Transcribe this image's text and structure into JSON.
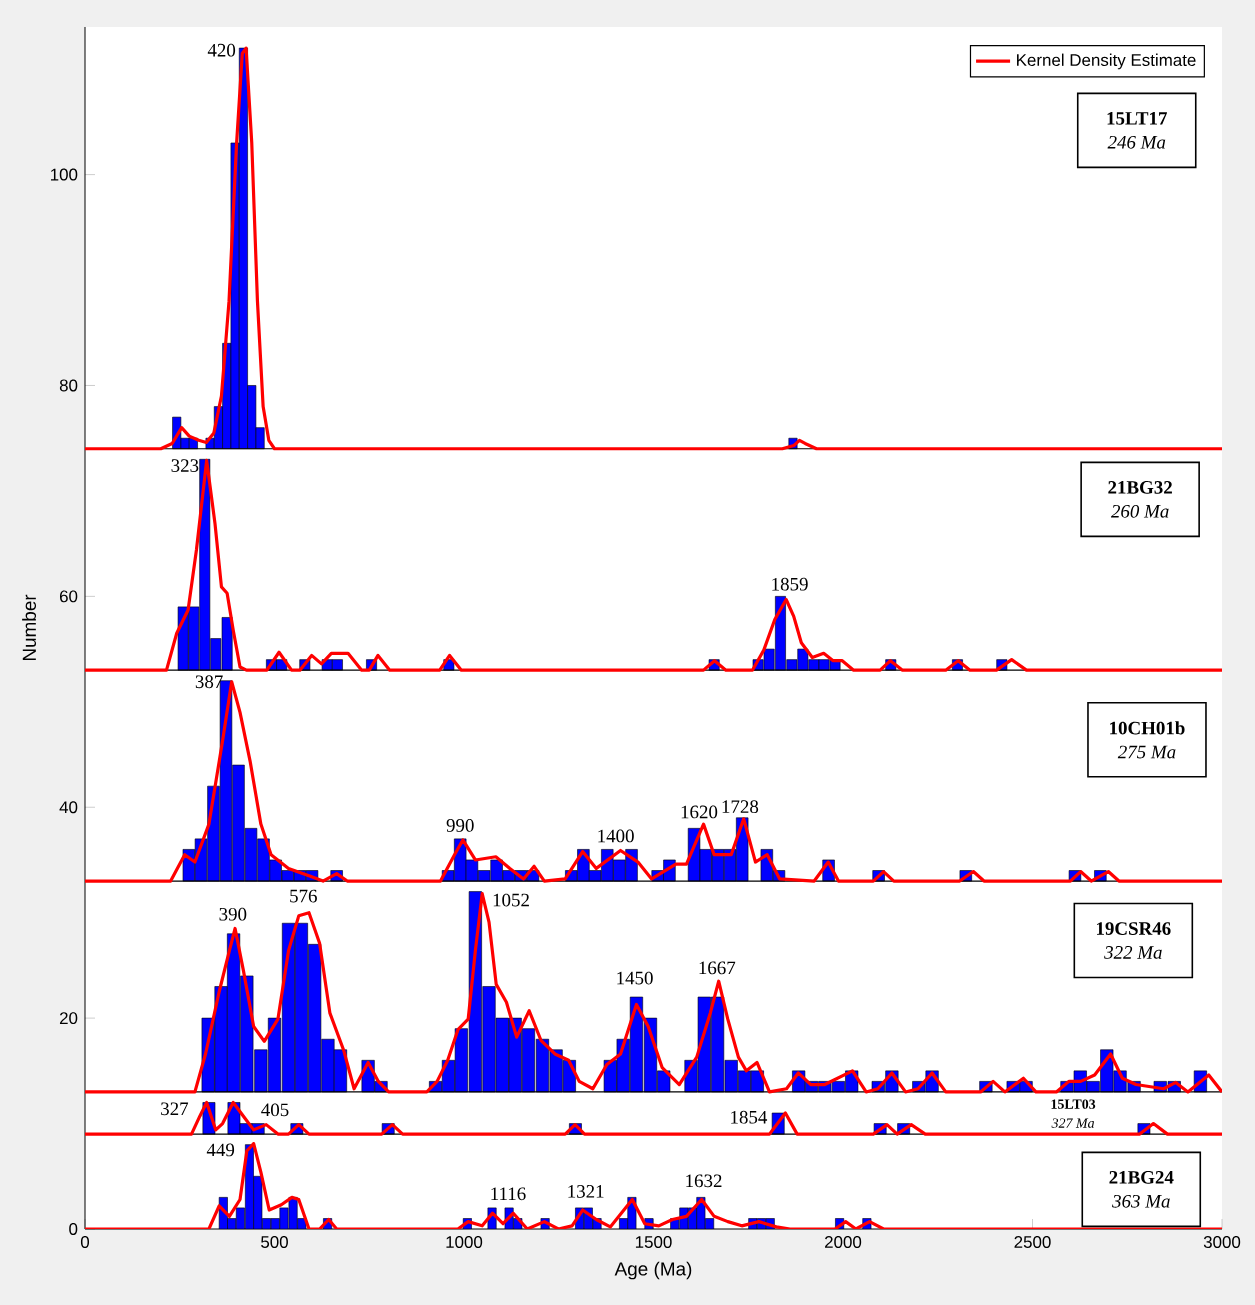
{
  "chart_data": {
    "type": "bar",
    "xlabel": "Age (Ma)",
    "ylabel": "Number",
    "xlim": [
      0,
      3000
    ],
    "ylim": [
      0,
      114
    ],
    "xticks": [
      0,
      500,
      1000,
      1500,
      2000,
      2500,
      3000
    ],
    "yticks": [
      0,
      20,
      40,
      60,
      80,
      100
    ],
    "legend": "top right",
    "series": [
      {
        "color": "#0000ff",
        "x": [
          242,
          259,
          264,
          274,
          286,
          287,
          306,
          316,
          325,
          327,
          330,
          339,
          345,
          352,
          359,
          365,
          372,
          374,
          375,
          387,
          392,
          393,
          396,
          405,
          410,
          418,
          425,
          427,
          434,
          438,
          440,
          456,
          457,
          462,
          464,
          471,
          479,
          492,
          500,
          502,
          503,
          519,
          525,
          535,
          537,
          549,
          559,
          567,
          571,
          572,
          580,
          599,
          606,
          639,
          640,
          641,
          664,
          666,
          674,
          747,
          756,
          781,
          800,
          925,
          958,
          959,
          960,
          990,
          993,
          1009,
          1021,
          1030,
          1053,
          1066,
          1074,
          1086,
          1101,
          1118,
          1119,
          1135,
          1142,
          1150,
          1170,
          1182,
          1207,
          1214,
          1243,
          1278,
          1283,
          1294,
          1305,
          1315,
          1328,
          1346,
          1351,
          1378,
          1386,
          1410,
          1420,
          1421,
          1442,
          1443,
          1455,
          1488,
          1492,
          1511,
          1527,
          1542,
          1556,
          1580,
          1599,
          1603,
          1607,
          1625,
          1634,
          1638,
          1648,
          1660,
          1669,
          1670,
          1702,
          1705,
          1734,
          1740,
          1762,
          1774,
          1776,
          1785,
          1799,
          1805,
          1808,
          1829,
          1831,
          1835,
          1865,
          1868,
          1883,
          1894,
          1917,
          1923,
          1950,
          1952,
          1962,
          1979,
          1988,
          1991,
          2023,
          2063,
          2093,
          2094,
          2098,
          2126,
          2129,
          2160,
          2200,
          2235,
          2302,
          2324,
          2377,
          2419,
          2449,
          2483,
          2591,
          2612,
          2626,
          2660,
          2679,
          2696,
          2731,
          2768,
          2794,
          2837,
          2874,
          2943
        ],
        "values": [
          3,
          6,
          1,
          3,
          1,
          6,
          4,
          20,
          7,
          3,
          1,
          9,
          3,
          4,
          10,
          3,
          19,
          10,
          5,
          1,
          15,
          3,
          29,
          11,
          2,
          38,
          1,
          11,
          8,
          5,
          6,
          5,
          1,
          2,
          4,
          4,
          1,
          1,
          7,
          1,
          2,
          1,
          2,
          1,
          16,
          3,
          1,
          1,
          16,
          1,
          1,
          1,
          14,
          1,
          1,
          5,
          1,
          1,
          4,
          3,
          1,
          1,
          1,
          1,
          1,
          3,
          1,
          4,
          6,
          1,
          2,
          19,
          1,
          10,
          2,
          2,
          7,
          1,
          2,
          7,
          1,
          1,
          6,
          1,
          5,
          1,
          4,
          3,
          1,
          1,
          2,
          3,
          2,
          1,
          1,
          3,
          3,
          2,
          5,
          1,
          3,
          3,
          9,
          1,
          7,
          1,
          2,
          2,
          1,
          2,
          3,
          2,
          5,
          3,
          9,
          3,
          1,
          1,
          9,
          3,
          3,
          3,
          6,
          2,
          1,
          2,
          1,
          1,
          3,
          2,
          1,
          2,
          1,
          7,
          1,
          1,
          2,
          2,
          1,
          1,
          1,
          1,
          2,
          1,
          1,
          1,
          2,
          1,
          1,
          1,
          1,
          1,
          2,
          1,
          1,
          2,
          1,
          1,
          1,
          1,
          1,
          1,
          1,
          1,
          2,
          1,
          1,
          4,
          2,
          1,
          1,
          1,
          1,
          2
        ],
        "base": [
          74,
          53,
          74,
          33,
          74,
          53,
          33,
          53,
          13,
          9,
          74,
          33,
          53,
          74,
          13,
          0,
          33,
          74,
          53,
          0,
          13,
          9,
          74,
          33,
          0,
          74,
          9,
          13,
          0,
          33,
          74,
          0,
          9,
          74,
          13,
          33,
          0,
          53,
          13,
          0,
          33,
          53,
          0,
          33,
          13,
          0,
          9,
          33,
          13,
          0,
          53,
          33,
          13,
          53,
          0,
          13,
          33,
          53,
          13,
          13,
          53,
          13,
          9,
          13,
          33,
          13,
          53,
          33,
          13,
          0,
          33,
          13,
          33,
          13,
          0,
          33,
          13,
          33,
          0,
          13,
          0,
          33,
          13,
          33,
          13,
          0,
          13,
          13,
          33,
          9,
          0,
          33,
          0,
          33,
          0,
          33,
          13,
          33,
          13,
          0,
          33,
          0,
          13,
          0,
          13,
          33,
          13,
          33,
          0,
          0,
          13,
          0,
          33,
          0,
          13,
          33,
          0,
          53,
          13,
          33,
          33,
          13,
          33,
          13,
          0,
          13,
          53,
          0,
          33,
          53,
          0,
          9,
          33,
          53,
          53,
          74,
          13,
          53,
          13,
          53,
          53,
          13,
          33,
          53,
          13,
          0,
          13,
          0,
          13,
          33,
          9,
          53,
          13,
          9,
          13,
          13,
          53,
          33,
          13,
          53,
          13,
          13,
          13,
          33,
          13,
          13,
          33,
          13,
          13,
          13,
          9,
          13,
          13,
          13
        ]
      },
      {
        "type": "line",
        "name": "Kernel Density Estimate",
        "color": "#ff0000",
        "x": [
          0,
          200,
          230,
          255,
          275,
          300,
          320,
          340,
          360,
          380,
          400,
          415,
          425,
          440,
          455,
          470,
          485,
          500,
          1840,
          1870,
          1885,
          1900,
          1930,
          3000
        ],
        "values": [
          74,
          74,
          74.5,
          76,
          75.2,
          74.8,
          74.6,
          75.5,
          79,
          88,
          103,
          111.5,
          112,
          103,
          88,
          78,
          74.8,
          74,
          74,
          74.3,
          74.8,
          74.5,
          74,
          74
        ]
      },
      {
        "type": "line",
        "color": "#ff0000",
        "x": [
          0,
          215,
          242,
          272,
          294,
          321,
          343,
          360,
          375,
          391,
          409,
          426,
          480,
          512,
          545,
          567,
          598,
          624,
          650,
          694,
          730,
          750,
          773,
          804,
          936,
          962,
          993,
          1632,
          1661,
          1691,
          1761,
          1791,
          1820,
          1850,
          1870,
          1890,
          1919,
          1949,
          1974,
          1998,
          2028,
          2098,
          2125,
          2157,
          2271,
          2304,
          2335,
          2405,
          2445,
          2484,
          3000
        ],
        "values": [
          53,
          53,
          56.5,
          58.7,
          64.4,
          72.9,
          66.9,
          60.9,
          60.3,
          56.8,
          53.3,
          53,
          53,
          54.7,
          53,
          53,
          54.4,
          53.6,
          54.6,
          54.6,
          53,
          53,
          54.4,
          53,
          53,
          54.4,
          53,
          53,
          53.9,
          53,
          53,
          54.9,
          57.8,
          59.7,
          58.1,
          55.6,
          54.2,
          54.6,
          53.9,
          53.9,
          53,
          53,
          53.9,
          53,
          53,
          53.9,
          53,
          53,
          54,
          53,
          53
        ]
      },
      {
        "type": "line",
        "color": "#ff0000",
        "x": [
          0,
          226,
          263,
          290,
          327,
          363,
          387,
          409,
          436,
          464,
          491,
          537,
          591,
          628,
          664,
          692,
          938,
          975,
          997,
          1030,
          1084,
          1121,
          1157,
          1185,
          1212,
          1267,
          1313,
          1349,
          1413,
          1459,
          1495,
          1559,
          1587,
          1632,
          1660,
          1705,
          1738,
          1769,
          1800,
          1833,
          1924,
          1961,
          1988,
          2080,
          2107,
          2134,
          2308,
          2344,
          2372,
          2600,
          2627,
          2655,
          2700,
          2728,
          3000
        ],
        "values": [
          33,
          33,
          35.5,
          34.8,
          38.4,
          46.3,
          51.9,
          49,
          44.3,
          38.4,
          35.5,
          34.2,
          33.5,
          33,
          33.7,
          33,
          33,
          35.5,
          36.9,
          35,
          35.3,
          34.2,
          33.2,
          34.4,
          33,
          33.2,
          35.8,
          34.2,
          35.9,
          34.8,
          33.2,
          34.6,
          34.6,
          38.4,
          35.5,
          35.5,
          38.9,
          34.8,
          35.5,
          33.2,
          33,
          34.8,
          33,
          33,
          33.9,
          33,
          33,
          33.9,
          33,
          33,
          33.9,
          33,
          33.9,
          33,
          33
        ]
      },
      {
        "type": "line",
        "color": "#ff0000",
        "x": [
          0,
          290,
          318,
          354,
          381,
          396,
          418,
          445,
          473,
          509,
          537,
          564,
          591,
          619,
          646,
          683,
          710,
          747,
          774,
          801,
          902,
          929,
          957,
          984,
          1011,
          1030,
          1048,
          1066,
          1085,
          1112,
          1139,
          1172,
          1203,
          1240,
          1276,
          1304,
          1340,
          1377,
          1413,
          1455,
          1486,
          1523,
          1568,
          1614,
          1650,
          1672,
          1696,
          1724,
          1745,
          1773,
          1806,
          1851,
          1882,
          1915,
          1952,
          2025,
          2061,
          2092,
          2129,
          2165,
          2198,
          2235,
          2271,
          2363,
          2396,
          2427,
          2476,
          2509,
          2563,
          2596,
          2627,
          2664,
          2706,
          2737,
          2773,
          2846,
          2878,
          2910,
          2965,
          3000
        ],
        "values": [
          13,
          13,
          16.6,
          22.5,
          26.4,
          28.5,
          24.5,
          19.2,
          17.8,
          19.9,
          26.4,
          29.7,
          30,
          27.1,
          20.5,
          16.9,
          13.3,
          15.8,
          14,
          13,
          13,
          14,
          16,
          18.9,
          19.9,
          26.4,
          31.8,
          29.1,
          23.2,
          21.5,
          18.2,
          20.7,
          17.9,
          16.6,
          16,
          14,
          13.3,
          15.6,
          16.6,
          21.3,
          19.2,
          15.3,
          13.7,
          16.3,
          20.5,
          23.5,
          19.9,
          16.3,
          15,
          15.8,
          13,
          13.3,
          14.8,
          13.7,
          13.7,
          15,
          13,
          13.3,
          14.8,
          13,
          13.3,
          14.8,
          13,
          13,
          14,
          13,
          14.3,
          13,
          13,
          14,
          14,
          14.6,
          16.6,
          14.3,
          13.7,
          13.3,
          13.9,
          13,
          14.6,
          13
        ]
      },
      {
        "type": "line",
        "color": "#ff0000",
        "x": [
          0,
          281,
          303,
          321,
          345,
          363,
          391,
          418,
          445,
          478,
          509,
          537,
          564,
          591,
          783,
          811,
          838,
          1267,
          1293,
          1318,
          1806,
          1848,
          1879,
          2080,
          2116,
          2143,
          2180,
          2217,
          2783,
          2819,
          2856,
          3000
        ],
        "values": [
          9,
          9,
          10.7,
          12,
          9.4,
          10,
          12,
          10.7,
          9.4,
          9.9,
          9,
          9,
          9.9,
          9,
          9,
          9.9,
          9,
          9,
          9.9,
          9,
          9,
          11,
          9,
          9,
          9.9,
          9,
          9.9,
          9,
          9,
          10,
          9,
          9
        ]
      },
      {
        "type": "line",
        "color": "#ff0000",
        "x": [
          0,
          327,
          354,
          381,
          409,
          427,
          445,
          464,
          486,
          518,
          546,
          564,
          591,
          619,
          643,
          664,
          984,
          1011,
          1048,
          1075,
          1103,
          1130,
          1167,
          1212,
          1249,
          1285,
          1313,
          1349,
          1386,
          1444,
          1477,
          1514,
          1550,
          1587,
          1627,
          1660,
          1696,
          1733,
          1778,
          1824,
          1860,
          1979,
          2007,
          2034,
          2070,
          2107,
          3000
        ],
        "values": [
          0,
          0,
          2.2,
          1.2,
          2.8,
          7.4,
          8.1,
          5.4,
          1.8,
          2.3,
          3,
          2.8,
          0,
          0,
          0.9,
          0,
          0,
          0.7,
          0.3,
          1.5,
          0.5,
          1.5,
          0,
          0.7,
          0,
          0.3,
          1.8,
          0.9,
          0.2,
          2.8,
          0.5,
          0.3,
          0.9,
          1.2,
          2.8,
          1.2,
          0.7,
          0.3,
          0.7,
          0.2,
          0,
          0,
          0.7,
          0,
          0.7,
          0,
          0
        ]
      }
    ],
    "ref_lines": [
      {
        "axis": "y",
        "value": 74,
        "color": "#000000"
      },
      {
        "axis": "y",
        "value": 53,
        "color": "#000000"
      },
      {
        "axis": "y",
        "value": 33,
        "color": "#000000"
      },
      {
        "axis": "y",
        "value": 13,
        "color": "#000000"
      },
      {
        "axis": "y",
        "value": 9,
        "color": "#000000"
      }
    ],
    "annotations": [
      "15LT17",
      "246 Ma",
      "21BG32",
      "260 Ma",
      "10CH01b",
      "275 Ma",
      "19CSR46",
      "322 Ma",
      "15LT03",
      "327 Ma",
      "21BG24",
      "363 Ma",
      {
        "text": "420",
        "x": 420,
        "y": 111.8
      },
      {
        "text": "323",
        "x": 323,
        "y": 72.4
      },
      {
        "text": "1859",
        "x": 1859,
        "y": 59.0
      },
      {
        "text": "387",
        "x": 387,
        "y": 51.9
      },
      {
        "text": "990",
        "x": 990,
        "y": 36.5
      },
      {
        "text": "1400",
        "x": 1400,
        "y": 35.5
      },
      {
        "text": "1620",
        "x": 1620,
        "y": 37.4
      },
      {
        "text": "1728",
        "x": 1728,
        "y": 37.9
      },
      {
        "text": "390",
        "x": 390,
        "y": 27.7
      },
      {
        "text": "576",
        "x": 576,
        "y": 29.8
      },
      {
        "text": "1052",
        "x": 1052,
        "y": 31.2
      },
      {
        "text": "1450",
        "x": 1450,
        "y": 20.7
      },
      {
        "text": "1667",
        "x": 1667,
        "y": 22.8
      },
      {
        "text": "327",
        "x": 327,
        "y": 11.4
      },
      {
        "text": "405",
        "x": 405,
        "y": 11.3
      },
      {
        "text": "1854",
        "x": 1854,
        "y": 10.6
      },
      {
        "text": "449",
        "x": 449,
        "y": 7.5
      },
      {
        "text": "1116",
        "x": 1116,
        "y": 1.0
      },
      {
        "text": "1321",
        "x": 1321,
        "y": 1.6
      },
      {
        "text": "1632",
        "x": 1632,
        "y": 2.6
      }
    ]
  }
}
